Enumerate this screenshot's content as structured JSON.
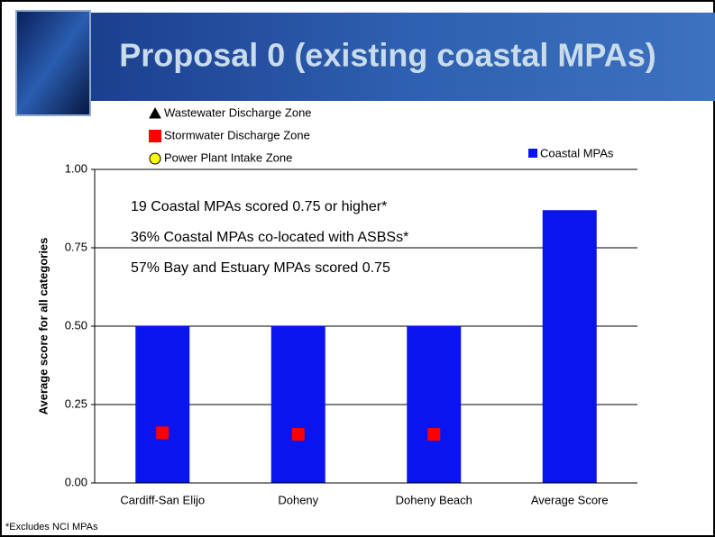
{
  "chart_data": {
    "type": "bar",
    "title": "Proposal 0 (existing coastal MPAs)",
    "ylabel": "Average score for all categories",
    "categories": [
      "Cardiff-San Elijo",
      "Doheny",
      "Doheny Beach",
      "Average Score"
    ],
    "series": [
      {
        "name": "Coastal MPAs",
        "color": "#0a14f0",
        "kind": "bar",
        "values": [
          0.5,
          0.5,
          0.5,
          0.87
        ]
      },
      {
        "name": "Wastewater Discharge Zone",
        "color": "#000000",
        "kind": "triangle",
        "values": [
          null,
          null,
          null,
          null
        ]
      },
      {
        "name": "Stormwater Discharge Zone",
        "color": "#ff0000",
        "kind": "square",
        "values": [
          0.16,
          0.155,
          0.155,
          null
        ]
      },
      {
        "name": "Power Plant Intake Zone",
        "color": "#ffff00",
        "kind": "circle",
        "values": [
          null,
          null,
          null,
          null
        ]
      }
    ],
    "ylim": [
      0,
      1
    ],
    "yticks": [
      {
        "value": 0,
        "label": "0.00"
      },
      {
        "value": 0.25,
        "label": "0.25"
      },
      {
        "value": 0.5,
        "label": "0.50"
      },
      {
        "value": 0.75,
        "label": "0.75"
      },
      {
        "value": 1,
        "label": "1.00"
      }
    ],
    "grid": true,
    "annotations": [
      "19 Coastal MPAs scored 0.75 or higher*",
      "36% Coastal MPAs co-located with ASBSs*",
      "57% Bay and Estuary MPAs scored 0.75"
    ],
    "note": "*Excludes NCI MPAs"
  }
}
